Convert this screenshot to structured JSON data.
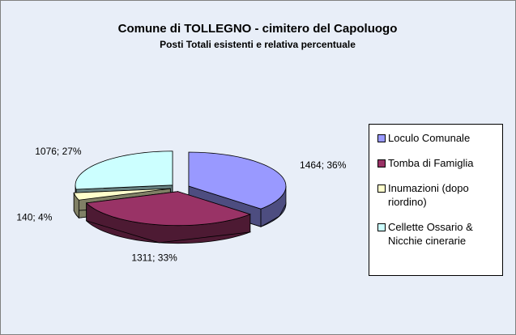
{
  "chart_data": {
    "type": "pie",
    "title": "Comune di TOLLEGNO - cimitero del Capoluogo",
    "subtitle": "Posti Totali esistenti e relativa percentuale",
    "categories": [
      "Loculo Comunale",
      "Tomba di Famiglia",
      "Inumazioni (dopo riordino)",
      "Cellette Ossario & Nicchie cinerarie"
    ],
    "values": [
      1464,
      1311,
      140,
      1076
    ],
    "value_labels": [
      "1464; 36%",
      "1311; 33%",
      "140; 4%",
      "1076; 27%"
    ],
    "colors": [
      "#9999ff",
      "#993366",
      "#ffffcc",
      "#ccffff"
    ],
    "legend": "right"
  }
}
